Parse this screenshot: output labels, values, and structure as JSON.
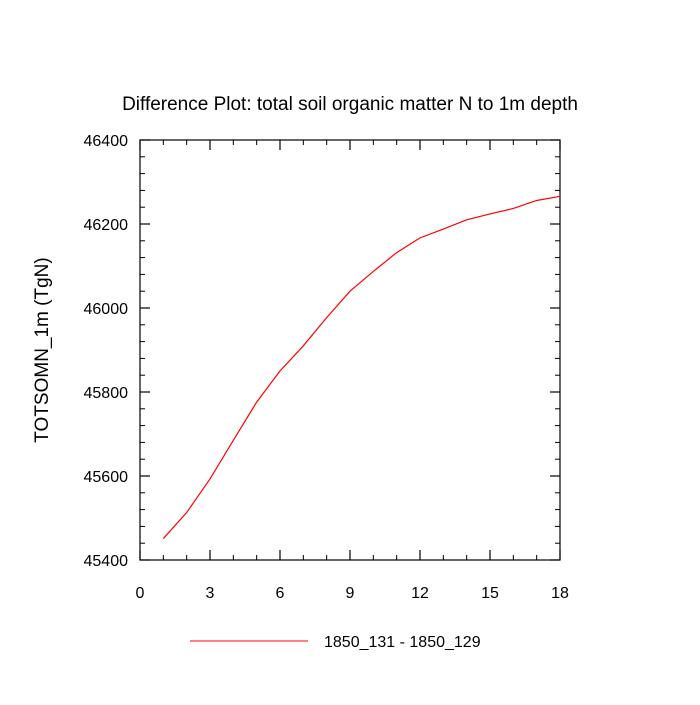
{
  "chart_data": {
    "type": "line",
    "title": "Difference Plot: total soil organic matter N to 1m depth",
    "xlabel": "",
    "ylabel": "TOTSOMN_1m  (TgN)",
    "xlim": [
      0,
      18
    ],
    "ylim": [
      45400,
      46400
    ],
    "x_ticks": [
      0,
      3,
      6,
      9,
      12,
      15,
      18
    ],
    "y_ticks": [
      45400,
      45600,
      45800,
      46000,
      46200,
      46400
    ],
    "x_minor_step": 1,
    "y_minor_step": 40,
    "grid": false,
    "legend_position": "bottom",
    "series": [
      {
        "name": "1850_131 - 1850_129",
        "color": "#ff0000",
        "x": [
          1,
          2,
          3,
          4,
          5,
          6,
          7,
          8,
          9,
          10,
          11,
          12,
          13,
          14,
          15,
          16,
          17,
          18
        ],
        "y": [
          45451,
          45513,
          45593,
          45685,
          45776,
          45850,
          45910,
          45977,
          46040,
          46087,
          46132,
          46167,
          46188,
          46210,
          46224,
          46237,
          46256,
          46266
        ]
      }
    ]
  }
}
